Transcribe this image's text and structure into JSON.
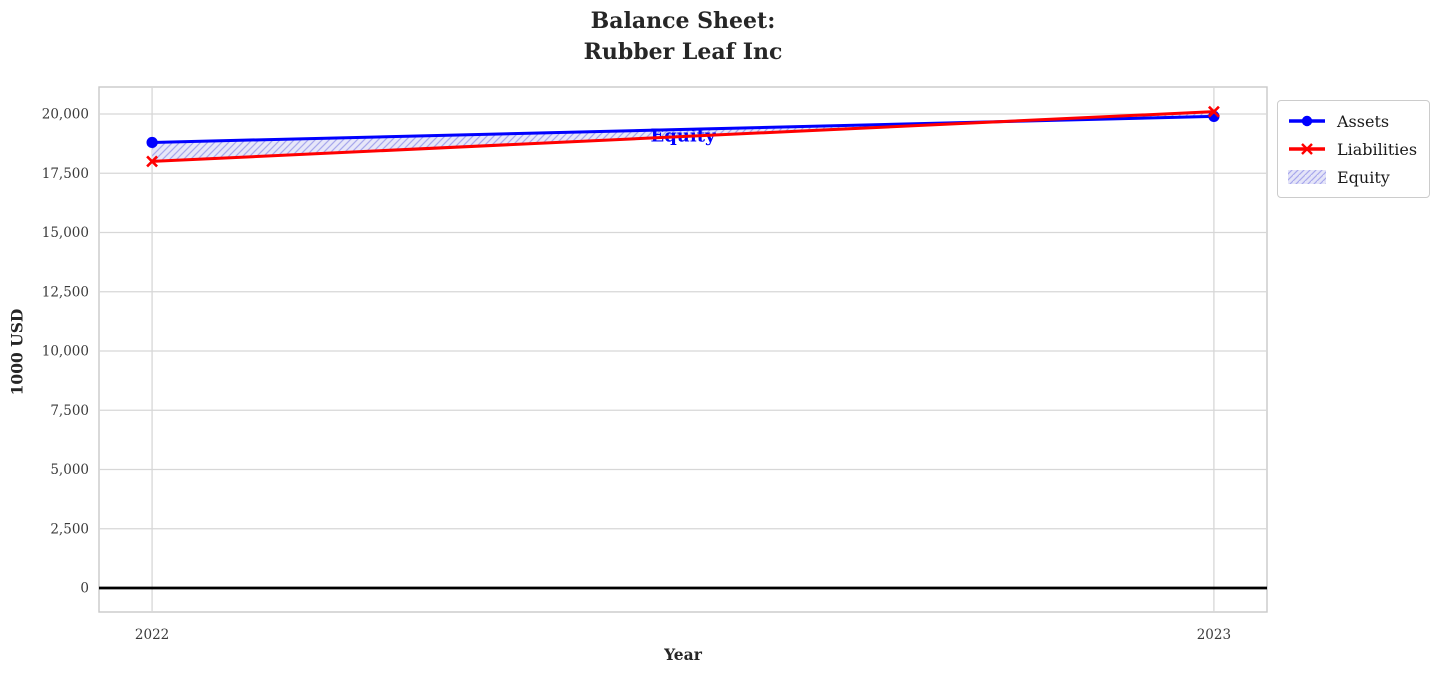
{
  "chart_data": {
    "type": "line",
    "title": "Balance Sheet:\nRubber Leaf Inc",
    "xlabel": "Year",
    "ylabel": "1000 USD",
    "x": [
      2022,
      2023
    ],
    "x_tick_labels": [
      "2022",
      "2023"
    ],
    "y_ticks": [
      0,
      2500,
      5000,
      7500,
      10000,
      12500,
      15000,
      17500,
      20000
    ],
    "ylim": [
      -1012,
      21140
    ],
    "xlim_pad": 0.05,
    "grid": true,
    "legend_position": "outside-upper-right",
    "series": [
      {
        "name": "Assets",
        "values": [
          18800,
          19900
        ],
        "color": "#0000ff",
        "marker": "circle",
        "line_width": 3
      },
      {
        "name": "Liabilities",
        "values": [
          18000,
          20100
        ],
        "color": "#ff0000",
        "marker": "x",
        "line_width": 3
      }
    ],
    "fill_between": {
      "name": "Equity",
      "between": [
        "Assets",
        "Liabilities"
      ],
      "fill_color": "#e4e4f8",
      "hatch_color": "#a8a8ec",
      "hatch_style": "//",
      "annotation": {
        "text": "Equity",
        "x": 2022.5,
        "y": 19100,
        "color": "#0000ff"
      }
    },
    "zero_line": {
      "y": 0,
      "color": "#000000"
    },
    "colors": {
      "grid": "#d7d7d7",
      "spine": "#c9c9c9",
      "tick_label": "#3a3a3a",
      "title": "#262626",
      "background": "#ffffff"
    }
  }
}
